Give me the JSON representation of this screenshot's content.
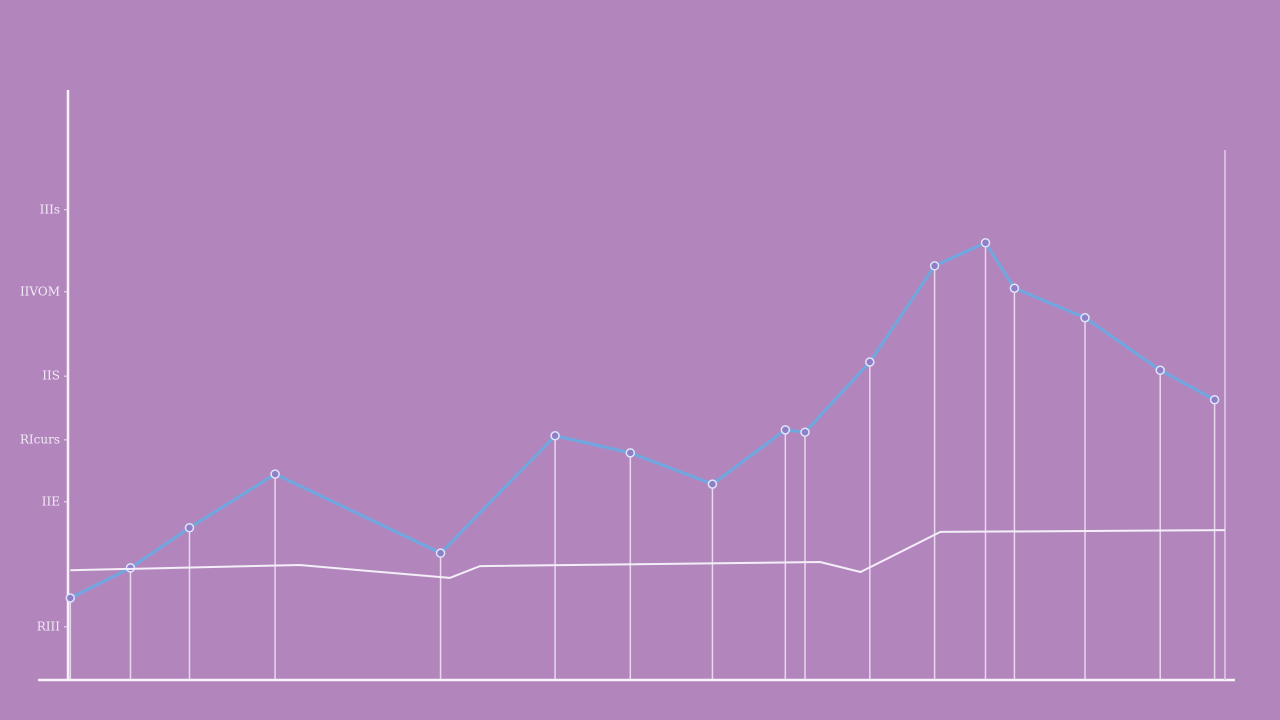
{
  "chart_data": {
    "type": "line",
    "x": [
      0.2,
      5.4,
      10.5,
      17.9,
      32.2,
      42.1,
      48.6,
      55.7,
      62.0,
      63.7,
      69.3,
      74.9,
      79.3,
      81.8,
      87.9,
      94.4,
      99.1
    ],
    "xlim": [
      0,
      100
    ],
    "ylim": [
      0,
      100
    ],
    "yticks": [
      {
        "value": 79.7,
        "label": "IIIs"
      },
      {
        "value": 65.8,
        "label": "IIVOM"
      },
      {
        "value": 51.5,
        "label": "IIS"
      },
      {
        "value": 40.7,
        "label": "RIcurs"
      },
      {
        "value": 30.2,
        "label": "IIE"
      },
      {
        "value": 9.0,
        "label": "RIII"
      }
    ],
    "series": [
      {
        "color": "#6fa8e0",
        "values": [
          13.9,
          19.0,
          25.8,
          34.9,
          21.5,
          41.4,
          38.5,
          33.2,
          42.4,
          42.0,
          53.9,
          70.2,
          74.1,
          66.4,
          61.4,
          52.5,
          47.5
        ]
      },
      {
        "color": "#f4eef8",
        "x": [
          0.2,
          20.0,
          33.0,
          35.6,
          65.0,
          68.5,
          75.4,
          100
        ],
        "values": [
          18.6,
          19.5,
          17.3,
          19.3,
          20.0,
          18.3,
          25.1,
          25.4
        ]
      }
    ]
  }
}
